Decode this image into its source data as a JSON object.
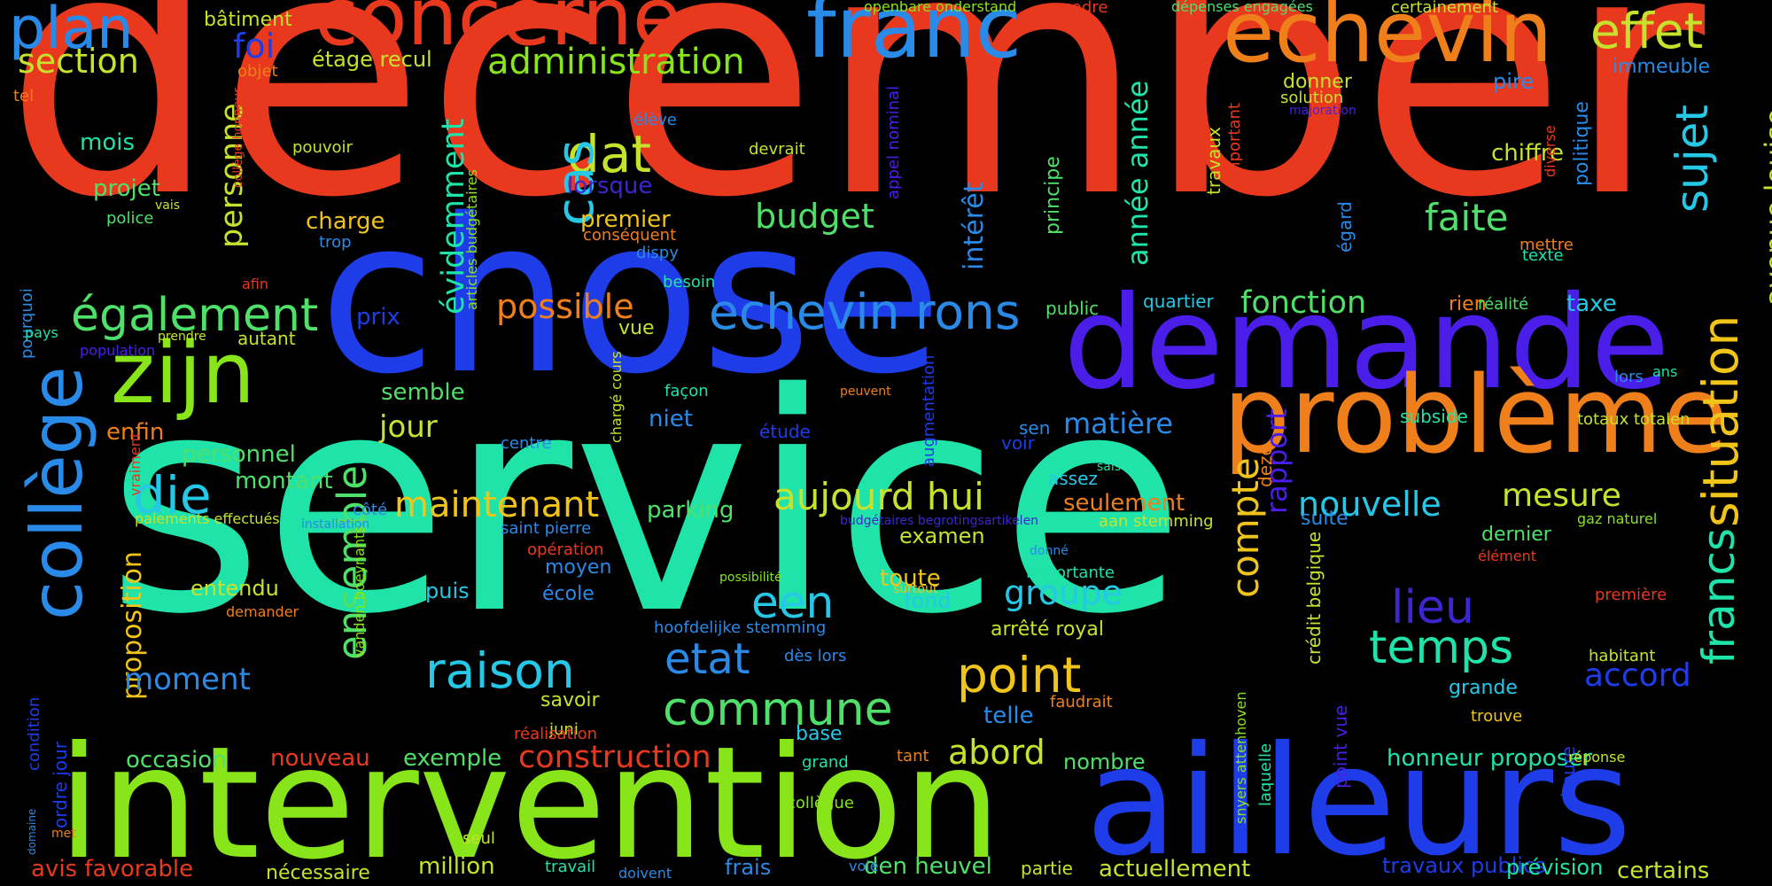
{
  "background": "#000000",
  "colors": {
    "red": "#e8391e",
    "orange": "#ef7f1a",
    "yellow": "#f0c419",
    "lime": "#c6e22c",
    "green": "#87e51a",
    "mint": "#4fe06a",
    "teal": "#1fe3a8",
    "cyan": "#25c8e6",
    "sky": "#2a8ae8",
    "blue": "#1e3ce8",
    "indigo": "#4a1ee8",
    "violet": "#3d26d0"
  },
  "words": [
    {
      "text": "december",
      "color": "red"
    },
    {
      "text": "service",
      "color": "teal"
    },
    {
      "text": "chose",
      "color": "blue"
    },
    {
      "text": "intervention",
      "color": "green"
    },
    {
      "text": "demande",
      "color": "indigo"
    },
    {
      "text": "ailleurs",
      "color": "blue"
    },
    {
      "text": "problème",
      "color": "orange"
    },
    {
      "text": "concerne",
      "color": "red"
    },
    {
      "text": "franc",
      "color": "sky"
    },
    {
      "text": "echevin",
      "color": "orange"
    },
    {
      "text": "zijn",
      "color": "green"
    },
    {
      "text": "collège",
      "color": "sky"
    },
    {
      "text": "plan",
      "color": "sky"
    },
    {
      "text": "effet",
      "color": "lime"
    },
    {
      "text": "situation",
      "color": "yellow"
    },
    {
      "text": "francs",
      "color": "teal"
    },
    {
      "text": "echevin rons",
      "color": "sky"
    },
    {
      "text": "également",
      "color": "mint"
    },
    {
      "text": "ensemble",
      "color": "mint"
    },
    {
      "text": "point",
      "color": "yellow"
    },
    {
      "text": "commune",
      "color": "mint"
    },
    {
      "text": "raison",
      "color": "cyan"
    },
    {
      "text": "temps",
      "color": "teal"
    },
    {
      "text": "lieu",
      "color": "violet"
    },
    {
      "text": "etat",
      "color": "sky"
    },
    {
      "text": "een",
      "color": "cyan"
    },
    {
      "text": "compte",
      "color": "yellow"
    },
    {
      "text": "sujet",
      "color": "cyan"
    },
    {
      "text": "dat",
      "color": "lime"
    },
    {
      "text": "cas",
      "color": "cyan"
    },
    {
      "text": "die",
      "color": "cyan"
    },
    {
      "text": "administration",
      "color": "green"
    },
    {
      "text": "section",
      "color": "lime"
    },
    {
      "text": "maintenant",
      "color": "yellow"
    },
    {
      "text": "aujourd hui",
      "color": "lime"
    },
    {
      "text": "possible",
      "color": "orange"
    },
    {
      "text": "budget",
      "color": "mint"
    },
    {
      "text": "faite",
      "color": "mint"
    },
    {
      "text": "groupe",
      "color": "cyan"
    },
    {
      "text": "nouvelle",
      "color": "cyan"
    },
    {
      "text": "fonction",
      "color": "mint"
    },
    {
      "text": "personne",
      "color": "lime"
    },
    {
      "text": "évidemment",
      "color": "teal"
    },
    {
      "text": "année année",
      "color": "teal"
    },
    {
      "text": "avenue louise",
      "color": "lime"
    },
    {
      "text": "mesure",
      "color": "lime"
    },
    {
      "text": "accord",
      "color": "blue"
    },
    {
      "text": "construction",
      "color": "red"
    },
    {
      "text": "abord",
      "color": "lime"
    },
    {
      "text": "rapport",
      "color": "indigo"
    },
    {
      "text": "proposition",
      "color": "yellow"
    },
    {
      "text": "moment",
      "color": "sky"
    },
    {
      "text": "matière",
      "color": "sky"
    },
    {
      "text": "jour",
      "color": "lime"
    },
    {
      "text": "intérêt",
      "color": "sky"
    },
    {
      "text": "foi",
      "color": "blue"
    },
    {
      "text": "avis favorable",
      "color": "red"
    },
    {
      "text": "nouveau",
      "color": "red"
    },
    {
      "text": "occasion",
      "color": "mint"
    },
    {
      "text": "exemple",
      "color": "mint"
    },
    {
      "text": "telle",
      "color": "sky"
    },
    {
      "text": "honneur proposer",
      "color": "teal"
    },
    {
      "text": "actuellement",
      "color": "lime"
    },
    {
      "text": "million",
      "color": "lime"
    },
    {
      "text": "den heuvel",
      "color": "mint"
    },
    {
      "text": "certains",
      "color": "lime"
    },
    {
      "text": "travaux publics",
      "color": "blue"
    },
    {
      "text": "prévision",
      "color": "teal"
    },
    {
      "text": "nombre",
      "color": "mint"
    },
    {
      "text": "frais",
      "color": "sky"
    },
    {
      "text": "nécessaire",
      "color": "lime"
    },
    {
      "text": "chiffre",
      "color": "lime"
    },
    {
      "text": "taxe",
      "color": "cyan"
    },
    {
      "text": "seulement",
      "color": "orange"
    },
    {
      "text": "parking",
      "color": "mint"
    },
    {
      "text": "montant",
      "color": "mint"
    },
    {
      "text": "personnel",
      "color": "mint"
    },
    {
      "text": "enfin",
      "color": "orange"
    },
    {
      "text": "semble",
      "color": "mint"
    },
    {
      "text": "entendu",
      "color": "lime"
    },
    {
      "text": "projet",
      "color": "mint"
    },
    {
      "text": "mois",
      "color": "teal"
    },
    {
      "text": "charge",
      "color": "yellow"
    },
    {
      "text": "premier",
      "color": "yellow"
    },
    {
      "text": "lorsque",
      "color": "violet"
    },
    {
      "text": "toute",
      "color": "yellow"
    },
    {
      "text": "examen",
      "color": "lime"
    },
    {
      "text": "arrêté royal",
      "color": "lime"
    },
    {
      "text": "base",
      "color": "cyan"
    },
    {
      "text": "puis",
      "color": "cyan"
    },
    {
      "text": "école",
      "color": "sky"
    },
    {
      "text": "moyen",
      "color": "sky"
    },
    {
      "text": "savoir",
      "color": "lime"
    },
    {
      "text": "pire",
      "color": "sky"
    },
    {
      "text": "immeuble",
      "color": "sky"
    },
    {
      "text": "politique",
      "color": "sky"
    },
    {
      "text": "donner",
      "color": "lime"
    },
    {
      "text": "plan",
      "color": "sky"
    },
    {
      "text": "bâtiment",
      "color": "lime"
    },
    {
      "text": "étage recul",
      "color": "lime"
    },
    {
      "text": "public",
      "color": "mint"
    },
    {
      "text": "quartier",
      "color": "cyan"
    },
    {
      "text": "rien",
      "color": "orange"
    },
    {
      "text": "réalité",
      "color": "mint"
    },
    {
      "text": "prix",
      "color": "blue"
    },
    {
      "text": "autant",
      "color": "lime"
    },
    {
      "text": "vue",
      "color": "lime"
    },
    {
      "text": "niet",
      "color": "sky"
    },
    {
      "text": "étude",
      "color": "blue"
    },
    {
      "text": "fond",
      "color": "cyan"
    },
    {
      "text": "grande",
      "color": "cyan"
    },
    {
      "text": "habitant",
      "color": "lime"
    },
    {
      "text": "dernier",
      "color": "mint"
    },
    {
      "text": "suite",
      "color": "sky"
    },
    {
      "text": "subside",
      "color": "teal"
    },
    {
      "text": "totaux totalen",
      "color": "lime"
    },
    {
      "text": "gaz naturel",
      "color": "green"
    },
    {
      "text": "trouve",
      "color": "yellow"
    },
    {
      "text": "voir",
      "color": "blue"
    },
    {
      "text": "assez",
      "color": "cyan"
    },
    {
      "text": "sen",
      "color": "sky"
    },
    {
      "text": "principe",
      "color": "mint"
    },
    {
      "text": "travaux",
      "color": "lime"
    },
    {
      "text": "important",
      "color": "red"
    },
    {
      "text": "égard",
      "color": "sky"
    },
    {
      "text": "deze",
      "color": "orange"
    },
    {
      "text": "crédit belgique",
      "color": "lime"
    },
    {
      "text": "point vue",
      "color": "indigo"
    },
    {
      "text": "heure",
      "color": "blue"
    },
    {
      "text": "laquelle",
      "color": "teal"
    },
    {
      "text": "snyers attenhoven",
      "color": "green"
    },
    {
      "text": "openbare onderstand",
      "color": "green"
    },
    {
      "text": "cadre",
      "color": "red"
    },
    {
      "text": "dépenses engagées",
      "color": "mint"
    },
    {
      "text": "certainement",
      "color": "lime"
    },
    {
      "text": "solution",
      "color": "lime"
    },
    {
      "text": "majoration",
      "color": "indigo"
    },
    {
      "text": "devrait",
      "color": "lime"
    },
    {
      "text": "appel nominal",
      "color": "indigo"
    },
    {
      "text": "élève",
      "color": "sky"
    },
    {
      "text": "pouvoir",
      "color": "lime"
    },
    {
      "text": "police",
      "color": "mint"
    },
    {
      "text": "vais",
      "color": "lime"
    },
    {
      "text": "collège honneur",
      "color": "red"
    },
    {
      "text": "articles budgétaires",
      "color": "green"
    },
    {
      "text": "trop",
      "color": "sky"
    },
    {
      "text": "conséquent",
      "color": "orange"
    },
    {
      "text": "dispy",
      "color": "sky"
    },
    {
      "text": "besoin",
      "color": "teal"
    },
    {
      "text": "mettre",
      "color": "orange"
    },
    {
      "text": "texte",
      "color": "teal"
    },
    {
      "text": "diverse",
      "color": "red"
    },
    {
      "text": "tel",
      "color": "orange"
    },
    {
      "text": "objet",
      "color": "orange"
    },
    {
      "text": "pourquoi",
      "color": "sky"
    },
    {
      "text": "pays",
      "color": "teal"
    },
    {
      "text": "prendre",
      "color": "lime"
    },
    {
      "text": "population",
      "color": "indigo"
    },
    {
      "text": "afin",
      "color": "red"
    },
    {
      "text": "chargé cours",
      "color": "lime"
    },
    {
      "text": "façon",
      "color": "teal"
    },
    {
      "text": "peuvent",
      "color": "orange"
    },
    {
      "text": "augmentation",
      "color": "blue"
    },
    {
      "text": "centre",
      "color": "sky"
    },
    {
      "text": "sais",
      "color": "teal"
    },
    {
      "text": "lors",
      "color": "sky"
    },
    {
      "text": "ans",
      "color": "teal"
    },
    {
      "text": "vraiment",
      "color": "red"
    },
    {
      "text": "installation",
      "color": "sky"
    },
    {
      "text": "paiements effectués",
      "color": "lime"
    },
    {
      "text": "côté",
      "color": "sky"
    },
    {
      "text": "saint pierre",
      "color": "sky"
    },
    {
      "text": "opération",
      "color": "red"
    },
    {
      "text": "budgétaires begrotingsartikelen",
      "color": "violet"
    },
    {
      "text": "aan stemming",
      "color": "lime"
    },
    {
      "text": "donné",
      "color": "sky"
    },
    {
      "text": "importante",
      "color": "teal"
    },
    {
      "text": "surtout",
      "color": "yellow"
    },
    {
      "text": "élément",
      "color": "red"
    },
    {
      "text": "première",
      "color": "red"
    },
    {
      "text": "possibilité",
      "color": "green"
    },
    {
      "text": "hoofdelijke stemming",
      "color": "sky"
    },
    {
      "text": "vanden boeynants",
      "color": "green"
    },
    {
      "text": "demander",
      "color": "orange"
    },
    {
      "text": "condition",
      "color": "blue"
    },
    {
      "text": "ordre jour",
      "color": "blue"
    },
    {
      "text": "domaine",
      "color": "sky"
    },
    {
      "text": "met",
      "color": "orange"
    },
    {
      "text": "dès lors",
      "color": "sky"
    },
    {
      "text": "faudrait",
      "color": "orange"
    },
    {
      "text": "juni",
      "color": "lime"
    },
    {
      "text": "réalisation",
      "color": "red"
    },
    {
      "text": "grand",
      "color": "teal"
    },
    {
      "text": "tant",
      "color": "orange"
    },
    {
      "text": "réponse",
      "color": "lime"
    },
    {
      "text": "collègue",
      "color": "green"
    },
    {
      "text": "seul",
      "color": "lime"
    },
    {
      "text": "travail",
      "color": "teal"
    },
    {
      "text": "doivent",
      "color": "sky"
    },
    {
      "text": "voie",
      "color": "sky"
    },
    {
      "text": "partie",
      "color": "lime"
    }
  ]
}
